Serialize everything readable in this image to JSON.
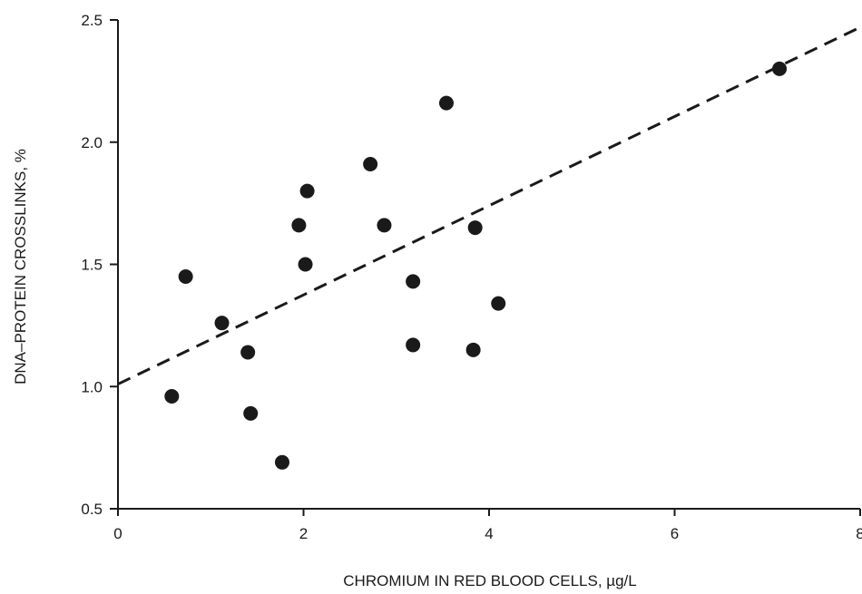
{
  "chart_data": {
    "type": "scatter",
    "title": "",
    "xlabel": "CHROMIUM IN RED BLOOD CELLS, µg/L",
    "ylabel": "DNA–PROTEIN CROSSLINKS, %",
    "xlim": [
      0,
      8
    ],
    "ylim": [
      0.5,
      2.5
    ],
    "xticks": [
      0,
      2,
      4,
      6,
      8
    ],
    "xtick_labels": [
      "0",
      "2",
      "4",
      "6",
      "8"
    ],
    "yticks": [
      0.5,
      1.0,
      1.5,
      2.0,
      2.5
    ],
    "ytick_labels": [
      "0.5",
      "1.0",
      "1.5",
      "2.0",
      "2.5"
    ],
    "grid": false,
    "points": [
      {
        "x": 0.58,
        "y": 0.96
      },
      {
        "x": 0.73,
        "y": 1.45
      },
      {
        "x": 1.12,
        "y": 1.26
      },
      {
        "x": 1.4,
        "y": 1.14
      },
      {
        "x": 1.43,
        "y": 0.89
      },
      {
        "x": 1.77,
        "y": 0.69
      },
      {
        "x": 1.95,
        "y": 1.66
      },
      {
        "x": 2.04,
        "y": 1.8
      },
      {
        "x": 2.02,
        "y": 1.5
      },
      {
        "x": 2.72,
        "y": 1.91
      },
      {
        "x": 2.87,
        "y": 1.66
      },
      {
        "x": 3.18,
        "y": 1.43
      },
      {
        "x": 3.18,
        "y": 1.17
      },
      {
        "x": 3.54,
        "y": 2.16
      },
      {
        "x": 3.85,
        "y": 1.65
      },
      {
        "x": 3.83,
        "y": 1.15
      },
      {
        "x": 4.1,
        "y": 1.34
      },
      {
        "x": 7.13,
        "y": 2.3
      }
    ],
    "trendline": {
      "style": "dashed",
      "x": [
        0,
        8
      ],
      "y": [
        1.01,
        2.47
      ]
    },
    "colors": {
      "points": "#1a1a1a",
      "axes": "#1a1a1a",
      "trendline": "#1a1a1a"
    }
  }
}
